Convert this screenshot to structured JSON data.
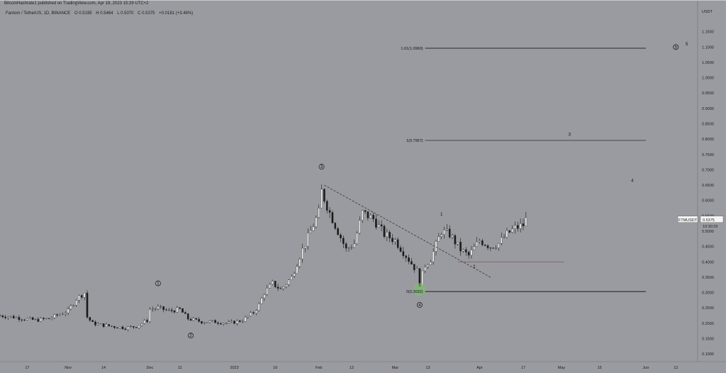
{
  "header": {
    "published": "BitcoinHashrate1 published on TradingView.com, Apr 18, 2023 15:29 UTC+2",
    "symbol": "Fantom / TetherUS, 1D, BINANCE",
    "ohlc": [
      "O 0.5195",
      "H 0.5464",
      "L 0.5070",
      "C 0.5375",
      "+0.0181 (+3.48%)"
    ]
  },
  "price_axis": {
    "currency": "USDT",
    "ticks": [
      "1.1500",
      "1.1000",
      "1.0500",
      "1.0000",
      "0.9500",
      "0.9000",
      "0.8500",
      "0.8000",
      "0.7500",
      "0.7000",
      "0.6500",
      "0.6000",
      "0.5500",
      "0.5000",
      "0.4500",
      "0.4000",
      "0.3500",
      "0.3000",
      "0.2500",
      "0.2000",
      "0.1500",
      "0.1000"
    ],
    "ticker_label": "FTMUSDT",
    "last_price": "0.5375",
    "countdown": "10:30:29"
  },
  "time_axis": {
    "labels": [
      "17",
      "Nov",
      "14",
      "Dec",
      "12",
      "2023",
      "16",
      "Feb",
      "13",
      "Mar",
      "13",
      "Apr",
      "17",
      "May",
      "15",
      "Jun",
      "12"
    ]
  },
  "fib_levels": [
    {
      "label": "1.61(1.0960)",
      "price": 1.096
    },
    {
      "label": "1(0.7957)",
      "price": 0.7957
    },
    {
      "label": "0(0.3032)",
      "price": 0.3032
    }
  ],
  "wave_labels": {
    "w1_left": "1",
    "w2_left": "2",
    "w3_circle": "3",
    "w4_circle": "4",
    "w5_circle": "5",
    "minor_1": "1",
    "minor_2": "2",
    "minor_3": "3",
    "minor_4": "4",
    "minor_5": "5"
  },
  "colors": {
    "background": "#9a9ba0",
    "candle_up": "#f4f4f4",
    "candle_down": "#1a1a1a",
    "support_line": "#8b5a5a",
    "highlight": "#7bbf6a"
  },
  "chart_data": {
    "type": "candlestick",
    "title": "Fantom / TetherUS, 1D, BINANCE",
    "ylim": [
      0.075,
      1.23
    ],
    "y_scale": "linear",
    "x_start": "2022-10-07",
    "x_end": "2023-06-20",
    "close_path": [
      [
        "2022-10-07",
        0.225
      ],
      [
        "2022-10-12",
        0.22
      ],
      [
        "2022-10-16",
        0.215
      ],
      [
        "2022-10-20",
        0.21
      ],
      [
        "2022-10-25",
        0.215
      ],
      [
        "2022-10-29",
        0.23
      ],
      [
        "2022-11-01",
        0.24
      ],
      [
        "2022-11-04",
        0.28
      ],
      [
        "2022-11-07",
        0.3
      ],
      [
        "2022-11-08",
        0.22
      ],
      [
        "2022-11-10",
        0.2
      ],
      [
        "2022-11-13",
        0.195
      ],
      [
        "2022-11-17",
        0.19
      ],
      [
        "2022-11-22",
        0.185
      ],
      [
        "2022-11-26",
        0.19
      ],
      [
        "2022-11-30",
        0.21
      ],
      [
        "2022-12-01",
        0.245
      ],
      [
        "2022-12-04",
        0.25
      ],
      [
        "2022-12-08",
        0.24
      ],
      [
        "2022-12-12",
        0.245
      ],
      [
        "2022-12-15",
        0.215
      ],
      [
        "2022-12-20",
        0.205
      ],
      [
        "2022-12-25",
        0.205
      ],
      [
        "2022-12-30",
        0.2
      ],
      [
        "2023-01-04",
        0.21
      ],
      [
        "2023-01-08",
        0.235
      ],
      [
        "2023-01-10",
        0.26
      ],
      [
        "2023-01-12",
        0.3
      ],
      [
        "2023-01-15",
        0.33
      ],
      [
        "2023-01-18",
        0.31
      ],
      [
        "2023-01-22",
        0.35
      ],
      [
        "2023-01-25",
        0.42
      ],
      [
        "2023-01-28",
        0.48
      ],
      [
        "2023-02-01",
        0.56
      ],
      [
        "2023-02-02",
        0.63
      ],
      [
        "2023-02-05",
        0.56
      ],
      [
        "2023-02-08",
        0.5
      ],
      [
        "2023-02-11",
        0.44
      ],
      [
        "2023-02-14",
        0.46
      ],
      [
        "2023-02-17",
        0.56
      ],
      [
        "2023-02-21",
        0.54
      ],
      [
        "2023-02-25",
        0.49
      ],
      [
        "2023-03-01",
        0.47
      ],
      [
        "2023-03-05",
        0.42
      ],
      [
        "2023-03-09",
        0.37
      ],
      [
        "2023-03-10",
        0.33
      ],
      [
        "2023-03-12",
        0.39
      ],
      [
        "2023-03-14",
        0.41
      ],
      [
        "2023-03-18",
        0.5
      ],
      [
        "2023-03-21",
        0.49
      ],
      [
        "2023-03-25",
        0.44
      ],
      [
        "2023-03-28",
        0.42
      ],
      [
        "2023-04-01",
        0.47
      ],
      [
        "2023-04-05",
        0.45
      ],
      [
        "2023-04-08",
        0.46
      ],
      [
        "2023-04-11",
        0.49
      ],
      [
        "2023-04-14",
        0.51
      ],
      [
        "2023-04-17",
        0.52
      ],
      [
        "2023-04-18",
        0.5375
      ]
    ],
    "trendline": {
      "from": [
        "2023-02-03",
        0.65
      ],
      "to": [
        "2023-04-05",
        0.35
      ]
    },
    "horizontal_support": {
      "from": "2023-03-24",
      "to": "2023-05-02",
      "price": 0.4
    },
    "fib_extension": [
      {
        "label": "1.61(1.0960)",
        "price": 1.096,
        "from": "2023-03-12",
        "to": "2023-06-01"
      },
      {
        "label": "1(0.7957)",
        "price": 0.7957,
        "from": "2023-03-12",
        "to": "2023-06-01"
      },
      {
        "label": "0(0.3032)",
        "price": 0.3032,
        "from": "2023-03-12",
        "to": "2023-06-01"
      }
    ],
    "elliott_waves": [
      {
        "label": "1",
        "date": "2022-12-04",
        "price": 0.33,
        "circled": true
      },
      {
        "label": "2",
        "date": "2022-12-16",
        "price": 0.16,
        "circled": true
      },
      {
        "label": "3",
        "date": "2023-02-02",
        "price": 0.71,
        "circled": true
      },
      {
        "label": "4",
        "date": "2023-03-10",
        "price": 0.26,
        "circled": true
      },
      {
        "label": "5",
        "date": "2023-06-12",
        "price": 1.1,
        "circled": true
      },
      {
        "label": "1",
        "date": "2023-03-18",
        "price": 0.555,
        "circled": false
      },
      {
        "label": "2",
        "date": "2023-03-30",
        "price": 0.385,
        "circled": false
      },
      {
        "label": "3",
        "date": "2023-05-04",
        "price": 0.815,
        "circled": false
      },
      {
        "label": "4",
        "date": "2023-05-27",
        "price": 0.665,
        "circled": false
      },
      {
        "label": "5",
        "date": "2023-06-16",
        "price": 1.11,
        "circled": false
      }
    ],
    "highlight_circle": {
      "date": "2023-03-10",
      "price": 0.31
    }
  }
}
